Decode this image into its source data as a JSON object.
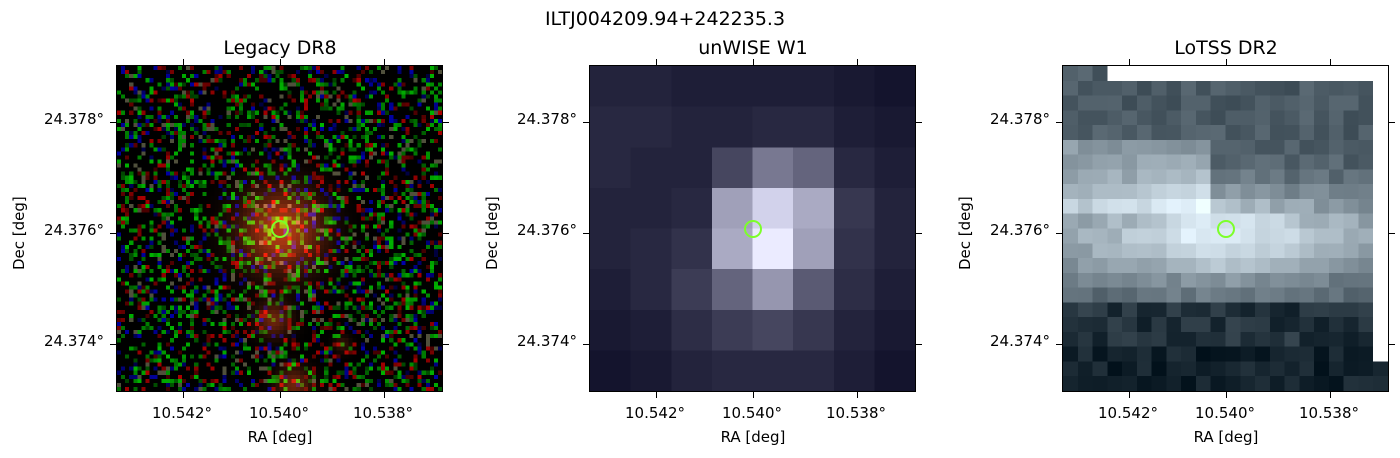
{
  "figure": {
    "title": "ILTJ004209.94+242235.3",
    "panels": [
      {
        "title": "Legacy DR8",
        "xlabel": "RA [deg]",
        "ylabel": "Dec [deg]"
      },
      {
        "title": "unWISE W1",
        "xlabel": "RA [deg]",
        "ylabel": "Dec [deg]"
      },
      {
        "title": "LoTSS DR2",
        "xlabel": "RA [deg]",
        "ylabel": "Dec [deg]"
      }
    ],
    "xticks": [
      "10.542°",
      "10.540°",
      "10.538°"
    ],
    "yticks": [
      "24.378°",
      "24.376°",
      "24.374°"
    ],
    "marker_color": "#7cff2a"
  }
}
